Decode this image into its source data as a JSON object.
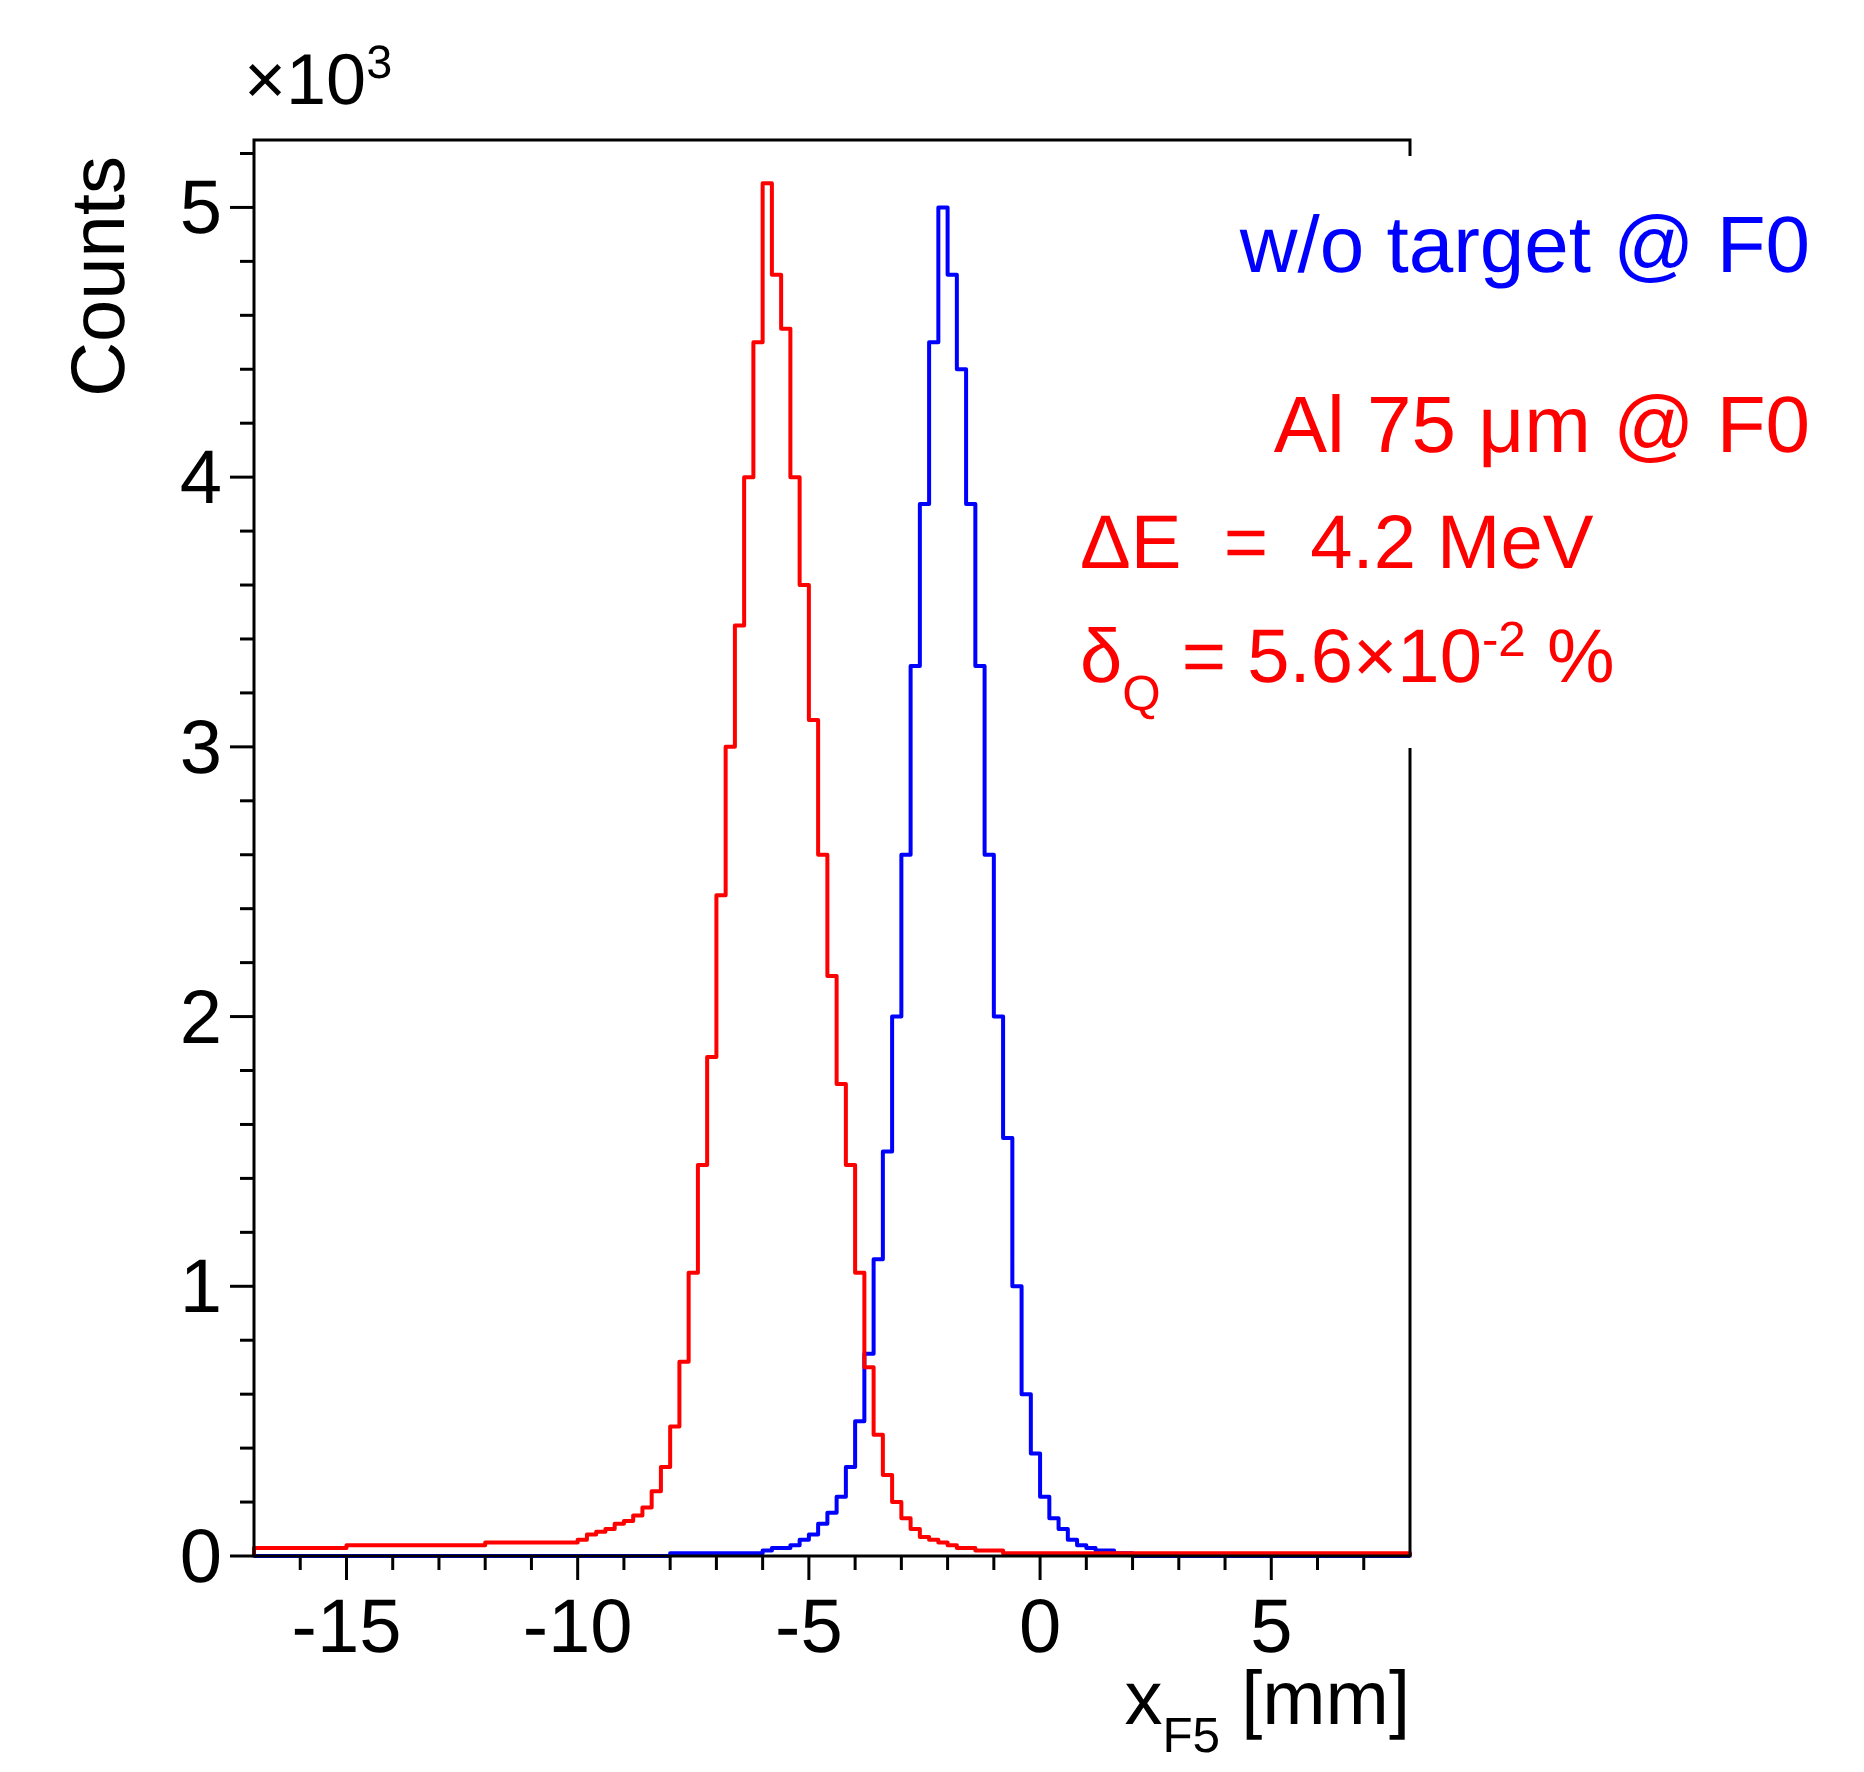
{
  "chart_data": {
    "type": "histogram",
    "xlabel": "x$_{F5}$ [mm]",
    "ylabel": "Counts",
    "legend": "top right",
    "grid": false,
    "annotations": [
      "×10$^{3}$",
      "ΔE  =  4.2 MeV",
      "δ$_{Q}$ = 5.6×10$^{-2}$ %"
    ],
    "xlim": [
      -17,
      8
    ],
    "ylim": [
      0,
      5.25
    ],
    "xticks": [
      {
        "value": -16,
        "label": null
      },
      -15,
      {
        "value": -14,
        "label": null
      },
      {
        "value": -13,
        "label": null
      },
      {
        "value": -12,
        "label": null
      },
      {
        "value": -11,
        "label": null
      },
      -10,
      {
        "value": -9,
        "label": null
      },
      {
        "value": -8,
        "label": null
      },
      {
        "value": -7,
        "label": null
      },
      {
        "value": -6,
        "label": null
      },
      -5,
      {
        "value": -4,
        "label": null
      },
      {
        "value": -3,
        "label": null
      },
      {
        "value": -2,
        "label": null
      },
      {
        "value": -1,
        "label": null
      },
      0,
      {
        "value": 1,
        "label": null
      },
      {
        "value": 2,
        "label": null
      },
      {
        "value": 3,
        "label": null
      },
      {
        "value": 4,
        "label": null
      },
      5,
      {
        "value": 6,
        "label": null
      },
      {
        "value": 7,
        "label": null
      }
    ],
    "yticks": [
      0,
      {
        "value": 0.2,
        "label": null
      },
      {
        "value": 0.4,
        "label": null
      },
      {
        "value": 0.6,
        "label": null
      },
      {
        "value": 0.8,
        "label": null
      },
      1,
      {
        "value": 1.2,
        "label": null
      },
      {
        "value": 1.4,
        "label": null
      },
      {
        "value": 1.6,
        "label": null
      },
      {
        "value": 1.8,
        "label": null
      },
      2,
      {
        "value": 2.2,
        "label": null
      },
      {
        "value": 2.4,
        "label": null
      },
      {
        "value": 2.6,
        "label": null
      },
      {
        "value": 2.8,
        "label": null
      },
      3,
      {
        "value": 3.2,
        "label": null
      },
      {
        "value": 3.4,
        "label": null
      },
      {
        "value": 3.6,
        "label": null
      },
      {
        "value": 3.8,
        "label": null
      },
      4,
      {
        "value": 4.2,
        "label": null
      },
      {
        "value": 4.4,
        "label": null
      },
      {
        "value": 4.6,
        "label": null
      },
      {
        "value": 4.8,
        "label": null
      },
      5,
      {
        "value": 5.2,
        "label": null
      }
    ],
    "bins": [
      -17,
      -16.8,
      -16.6,
      -16.4,
      -16.2,
      -16,
      -15.8,
      -15.6,
      -15.4,
      -15.2,
      -15,
      -14.8,
      -14.6,
      -14.4,
      -14.2,
      -14,
      -13.8,
      -13.6,
      -13.4,
      -13.2,
      -13,
      -12.8,
      -12.6,
      -12.4,
      -12.2,
      -12,
      -11.8,
      -11.6,
      -11.4,
      -11.2,
      -11,
      -10.8,
      -10.6,
      -10.4,
      -10.2,
      -10,
      -9.8,
      -9.6,
      -9.4,
      -9.2,
      -9,
      -8.8,
      -8.6,
      -8.4,
      -8.2,
      -8,
      -7.8,
      -7.6,
      -7.4,
      -7.2,
      -7,
      -6.8,
      -6.6,
      -6.4,
      -6.2,
      -6,
      -5.8,
      -5.6,
      -5.4,
      -5.2,
      -5,
      -4.8,
      -4.6,
      -4.4,
      -4.2,
      -4,
      -3.8,
      -3.6,
      -3.4,
      -3.2,
      -3,
      -2.8,
      -2.6,
      -2.4,
      -2.2,
      -2,
      -1.8,
      -1.6,
      -1.4,
      -1.2,
      -1,
      -0.8,
      -0.6,
      -0.4,
      -0.2,
      0,
      0.2,
      0.4,
      0.6,
      0.8,
      1,
      1.2,
      1.4,
      1.6,
      1.8,
      2,
      2.2,
      2.4,
      2.6,
      2.8,
      3,
      3.2,
      3.4,
      3.6,
      3.8,
      4,
      4.2,
      4.4,
      4.6,
      4.8,
      5,
      5.2,
      5.4,
      5.6,
      5.8,
      6,
      6.2,
      6.4,
      6.6,
      6.8,
      7,
      7.2,
      7.4,
      7.6,
      7.8,
      8
    ],
    "series": [
      {
        "name": "w/o target @ F0",
        "color": "#0000ff",
        "values": [
          0,
          0,
          0,
          0,
          0,
          0,
          0,
          0,
          0,
          0,
          0,
          0,
          0,
          0,
          0,
          0,
          0,
          0,
          0,
          0,
          0,
          0,
          0,
          0,
          0,
          0,
          0,
          0,
          0,
          0,
          0,
          0,
          0,
          0,
          0,
          0,
          0,
          0,
          0,
          0,
          0,
          0,
          0,
          0,
          0,
          0.01,
          0.01,
          0.01,
          0.01,
          0.01,
          0.01,
          0.01,
          0.01,
          0.01,
          0.01,
          0.02,
          0.03,
          0.03,
          0.04,
          0.06,
          0.08,
          0.12,
          0.16,
          0.22,
          0.33,
          0.5,
          0.75,
          1.1,
          1.5,
          2.0,
          2.6,
          3.3,
          3.9,
          4.5,
          5.0,
          4.75,
          4.4,
          3.9,
          3.3,
          2.6,
          2.0,
          1.55,
          1.0,
          0.6,
          0.38,
          0.22,
          0.14,
          0.1,
          0.06,
          0.04,
          0.03,
          0.02,
          0.02,
          0.01,
          0.01,
          0,
          0,
          0,
          0,
          0,
          0,
          0,
          0,
          0,
          0,
          0,
          0,
          0,
          0,
          0,
          0,
          0,
          0,
          0,
          0,
          0,
          0,
          0,
          0,
          0,
          0,
          0,
          0,
          0,
          0
        ]
      },
      {
        "name": "Al 75 μm @ F0",
        "color": "#ff0000",
        "values": [
          0.03,
          0.03,
          0.03,
          0.03,
          0.03,
          0.03,
          0.03,
          0.03,
          0.03,
          0.03,
          0.04,
          0.04,
          0.04,
          0.04,
          0.04,
          0.04,
          0.04,
          0.04,
          0.04,
          0.04,
          0.04,
          0.04,
          0.04,
          0.04,
          0.04,
          0.05,
          0.05,
          0.05,
          0.05,
          0.05,
          0.05,
          0.05,
          0.05,
          0.05,
          0.05,
          0.06,
          0.08,
          0.09,
          0.1,
          0.12,
          0.13,
          0.15,
          0.18,
          0.24,
          0.33,
          0.48,
          0.72,
          1.05,
          1.45,
          1.85,
          2.45,
          3.0,
          3.45,
          4.0,
          4.5,
          5.09,
          4.75,
          4.55,
          4.0,
          3.6,
          3.1,
          2.6,
          2.15,
          1.75,
          1.45,
          1.05,
          0.7,
          0.45,
          0.3,
          0.2,
          0.14,
          0.1,
          0.07,
          0.06,
          0.05,
          0.04,
          0.03,
          0.03,
          0.02,
          0.02,
          0.02,
          0.01,
          0.01,
          0.01,
          0.01,
          0.01,
          0.01,
          0.01,
          0.01,
          0.01,
          0.01,
          0.01,
          0.01,
          0.01,
          0.01,
          0.01,
          0.01,
          0.01,
          0.01,
          0.01,
          0.01,
          0.01,
          0.01,
          0.01,
          0.01,
          0.01,
          0.01,
          0.01,
          0.01,
          0.01,
          0.01,
          0.01,
          0.01,
          0.01,
          0.01,
          0.01,
          0.01,
          0.01,
          0.01,
          0.01,
          0.01,
          0.01,
          0.01,
          0.01,
          0.01
        ]
      }
    ]
  }
}
